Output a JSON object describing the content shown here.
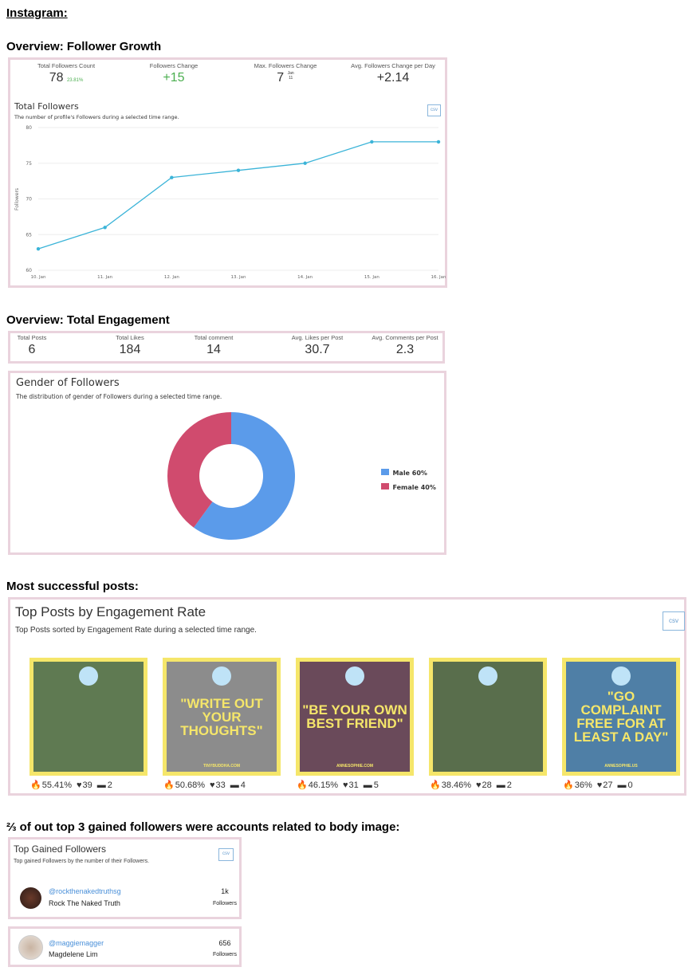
{
  "headings": {
    "instagram": "Instagram:",
    "growth": "Overview: Follower Growth",
    "engagement": "Overview: Total Engagement",
    "posts": "Most successful posts:",
    "gained": "⅔ of out top 3 gained followers were accounts related to body image:"
  },
  "growth_stats": [
    {
      "label": "Total Followers Count",
      "value": "78",
      "sub": "23.81%"
    },
    {
      "label": "Followers Change",
      "value": "+15"
    },
    {
      "label": "Max. Followers Change",
      "value": "7",
      "sub_top": "Jan",
      "sub_bottom": "11"
    },
    {
      "label": "Avg. Followers Change per Day",
      "value": "+2.14"
    }
  ],
  "total_followers": {
    "title": "Total Followers",
    "subtitle": "The number of profile's Followers during a selected time range.",
    "csv": "csv"
  },
  "chart_data": {
    "type": "line",
    "title": "Total Followers",
    "ylabel": "Followers",
    "xlabel": "",
    "categories": [
      "10. Jan",
      "11. Jan",
      "12. Jan",
      "13. Jan",
      "14. Jan",
      "15. Jan",
      "16. Jan"
    ],
    "values": [
      63,
      66,
      73,
      74,
      75,
      78,
      78
    ],
    "ylim": [
      60,
      80
    ],
    "yticks": [
      60,
      65,
      70,
      75,
      80
    ],
    "color": "#3bb4d8"
  },
  "engagement_stats": [
    {
      "label": "Total Posts",
      "value": "6"
    },
    {
      "label": "Total Likes",
      "value": "184"
    },
    {
      "label": "Total comment",
      "value": "14"
    },
    {
      "label": "Avg. Likes per Post",
      "value": "30.7"
    },
    {
      "label": "Avg. Comments per Post",
      "value": "2.3"
    }
  ],
  "gender": {
    "title": "Gender of Followers",
    "subtitle": "The distribution of gender of Followers during a selected time range.",
    "slices": [
      {
        "label": "Male 60%",
        "value": 60,
        "color": "#5b9bea"
      },
      {
        "label": "Female 40%",
        "value": 40,
        "color": "#d04b6e"
      }
    ]
  },
  "top_posts": {
    "title": "Top Posts by Engagement Rate",
    "subtitle": "Top Posts sorted by Engagement Rate during a selected time range.",
    "csv": "csv",
    "posts": [
      {
        "caption": "",
        "rate": "55.41%",
        "likes": "39",
        "comments": "2",
        "bg": "#5f7a52"
      },
      {
        "caption": "\"WRITE OUT YOUR THOUGHTS\"",
        "footer": "TINYBUDDHA.COM",
        "rate": "50.68%",
        "likes": "33",
        "comments": "4",
        "bg": "#8c8c8c"
      },
      {
        "caption": "\"BE YOUR OWN BEST FRIEND\"",
        "footer": "ANNESOPHIE.COM",
        "rate": "46.15%",
        "likes": "31",
        "comments": "5",
        "bg": "#6a4a5a"
      },
      {
        "caption": "",
        "rate": "38.46%",
        "likes": "28",
        "comments": "2",
        "bg": "#596e4c"
      },
      {
        "caption": "\"GO COMPLAINT FREE FOR AT LEAST A DAY\"",
        "footer": "ANNESOPHIE.US",
        "rate": "36%",
        "likes": "27",
        "comments": "0",
        "bg": "#4f7fa6"
      }
    ]
  },
  "top_gained": {
    "title": "Top Gained Followers",
    "subtitle": "Top gained Followers by the number of their Followers.",
    "csv": "csv",
    "accounts": [
      {
        "handle": "@rockthenakedtruthsg",
        "name": "Rock The Naked Truth",
        "count": "1k",
        "unit": "Followers"
      },
      {
        "handle": "@maggiemagger",
        "name": "Magdelene Lim",
        "count": "656",
        "unit": "Followers"
      }
    ]
  }
}
